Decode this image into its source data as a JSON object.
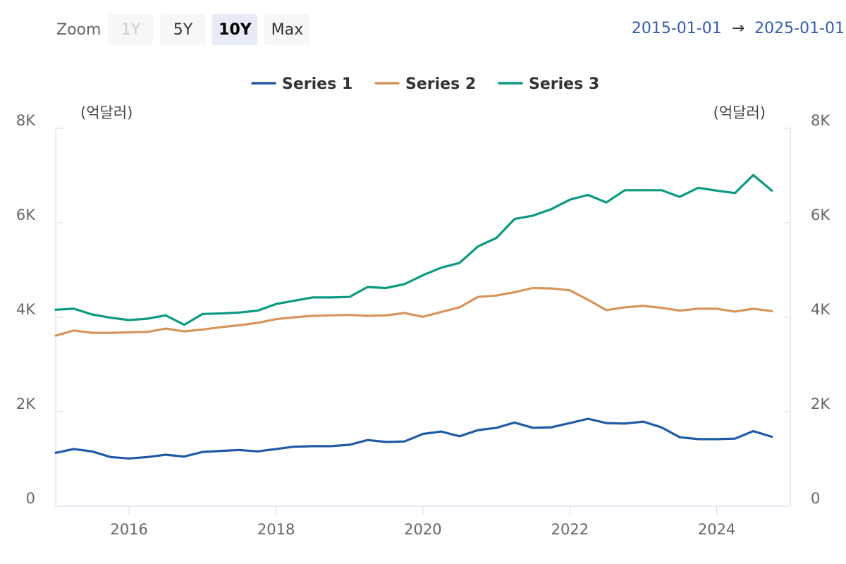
{
  "toolbar": {
    "zoom_label": "Zoom",
    "buttons": [
      {
        "label": "1Y",
        "state": "disabled"
      },
      {
        "label": "5Y",
        "state": "normal"
      },
      {
        "label": "10Y",
        "state": "active"
      },
      {
        "label": "Max",
        "state": "normal"
      }
    ]
  },
  "range": {
    "from": "2015-01-01",
    "arrow": "→",
    "to": "2025-01-01"
  },
  "chart_data": {
    "type": "line",
    "title": "",
    "unit_left": "(억달러)",
    "unit_right": "(억달러)",
    "ylim": [
      0,
      8000
    ],
    "y_ticks": [
      0,
      2000,
      4000,
      6000,
      8000
    ],
    "y_tick_labels": [
      "0",
      "2K",
      "4K",
      "6K",
      "8K"
    ],
    "xlim": [
      "2015-01-01",
      "2025-01-01"
    ],
    "x_tick_labels": [
      "2016",
      "2018",
      "2020",
      "2022",
      "2024"
    ],
    "legend_position": "top-center",
    "grid": false,
    "x": [
      "2015-01",
      "2015-04",
      "2015-07",
      "2015-10",
      "2016-01",
      "2016-04",
      "2016-07",
      "2016-10",
      "2017-01",
      "2017-04",
      "2017-07",
      "2017-10",
      "2018-01",
      "2018-04",
      "2018-07",
      "2018-10",
      "2019-01",
      "2019-04",
      "2019-07",
      "2019-10",
      "2020-01",
      "2020-04",
      "2020-07",
      "2020-10",
      "2021-01",
      "2021-04",
      "2021-07",
      "2021-10",
      "2022-01",
      "2022-04",
      "2022-07",
      "2022-10",
      "2023-01",
      "2023-04",
      "2023-07",
      "2023-10",
      "2024-01",
      "2024-04",
      "2024-07",
      "2024-10"
    ],
    "series": [
      {
        "name": "Series 1",
        "color": "#1f5aa6",
        "values": [
          1130,
          1210,
          1160,
          1040,
          1010,
          1040,
          1090,
          1050,
          1150,
          1170,
          1190,
          1160,
          1210,
          1260,
          1270,
          1270,
          1300,
          1400,
          1360,
          1370,
          1530,
          1580,
          1480,
          1610,
          1660,
          1770,
          1660,
          1670,
          1760,
          1850,
          1760,
          1750,
          1790,
          1670,
          1460,
          1420,
          1420,
          1430,
          1590,
          1470
        ]
      },
      {
        "name": "Series 2",
        "color": "#d6955c",
        "values": [
          3610,
          3720,
          3670,
          3670,
          3680,
          3690,
          3760,
          3700,
          3740,
          3790,
          3830,
          3880,
          3960,
          4000,
          4030,
          4040,
          4050,
          4030,
          4040,
          4090,
          4010,
          4110,
          4210,
          4430,
          4460,
          4530,
          4620,
          4610,
          4570,
          4370,
          4150,
          4210,
          4240,
          4200,
          4140,
          4180,
          4180,
          4120,
          4180,
          4130
        ]
      },
      {
        "name": "Series 3",
        "color": "#0b9981",
        "values": [
          4160,
          4180,
          4060,
          3990,
          3940,
          3970,
          4040,
          3840,
          4070,
          4080,
          4100,
          4140,
          4280,
          4350,
          4420,
          4420,
          4430,
          4640,
          4620,
          4700,
          4890,
          5050,
          5150,
          5500,
          5680,
          6080,
          6150,
          6290,
          6490,
          6590,
          6430,
          6690,
          6690,
          6690,
          6550,
          6740,
          6680,
          6630,
          7010,
          6680
        ]
      }
    ]
  }
}
